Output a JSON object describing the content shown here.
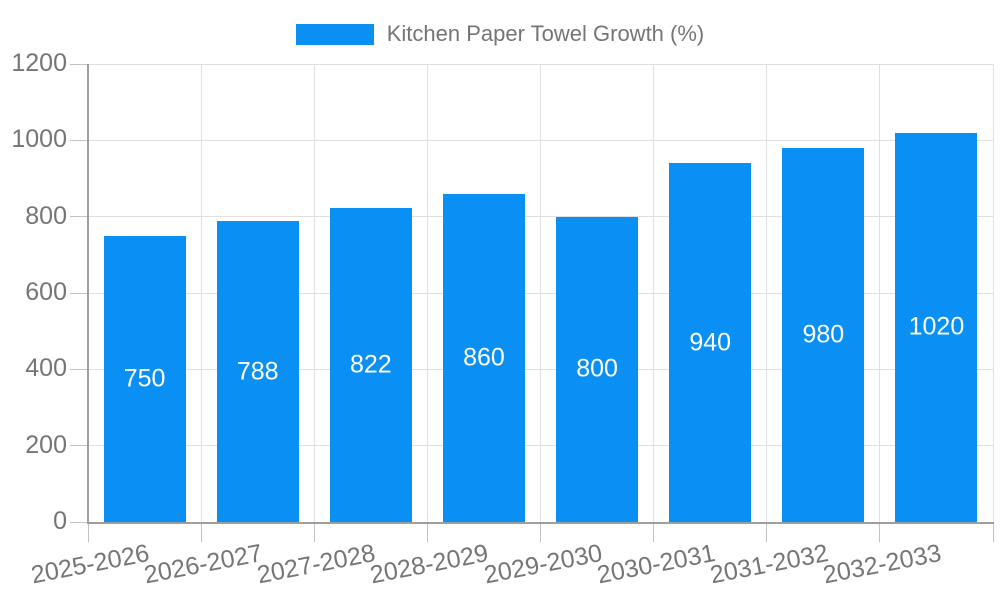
{
  "legend": {
    "label": "Kitchen Paper Towel Growth (%)"
  },
  "colors": {
    "bar": "#0a90f4",
    "bar_label": "#ffffff",
    "grid": "#e0e0e0",
    "tick": "#c2c2c2",
    "axis": "#9e9e9e",
    "text": "#757575"
  },
  "chart_data": {
    "type": "bar",
    "title": "Kitchen Paper Towel Growth (%)",
    "categories": [
      "2025-2026",
      "2026-2027",
      "2027-2028",
      "2028-2029",
      "2029-2030",
      "2030-2031",
      "2031-2032",
      "2032-2033"
    ],
    "values": [
      750,
      788,
      822,
      860,
      800,
      940,
      980,
      1020
    ],
    "xlabel": "",
    "ylabel": "",
    "ylim": [
      0,
      1200
    ],
    "yticks": [
      0,
      200,
      400,
      600,
      800,
      1000,
      1200
    ],
    "grid": true,
    "legend_position": "top-center",
    "bar_label_position": "middle-of-bar",
    "x_label_rotation_deg": -11
  }
}
